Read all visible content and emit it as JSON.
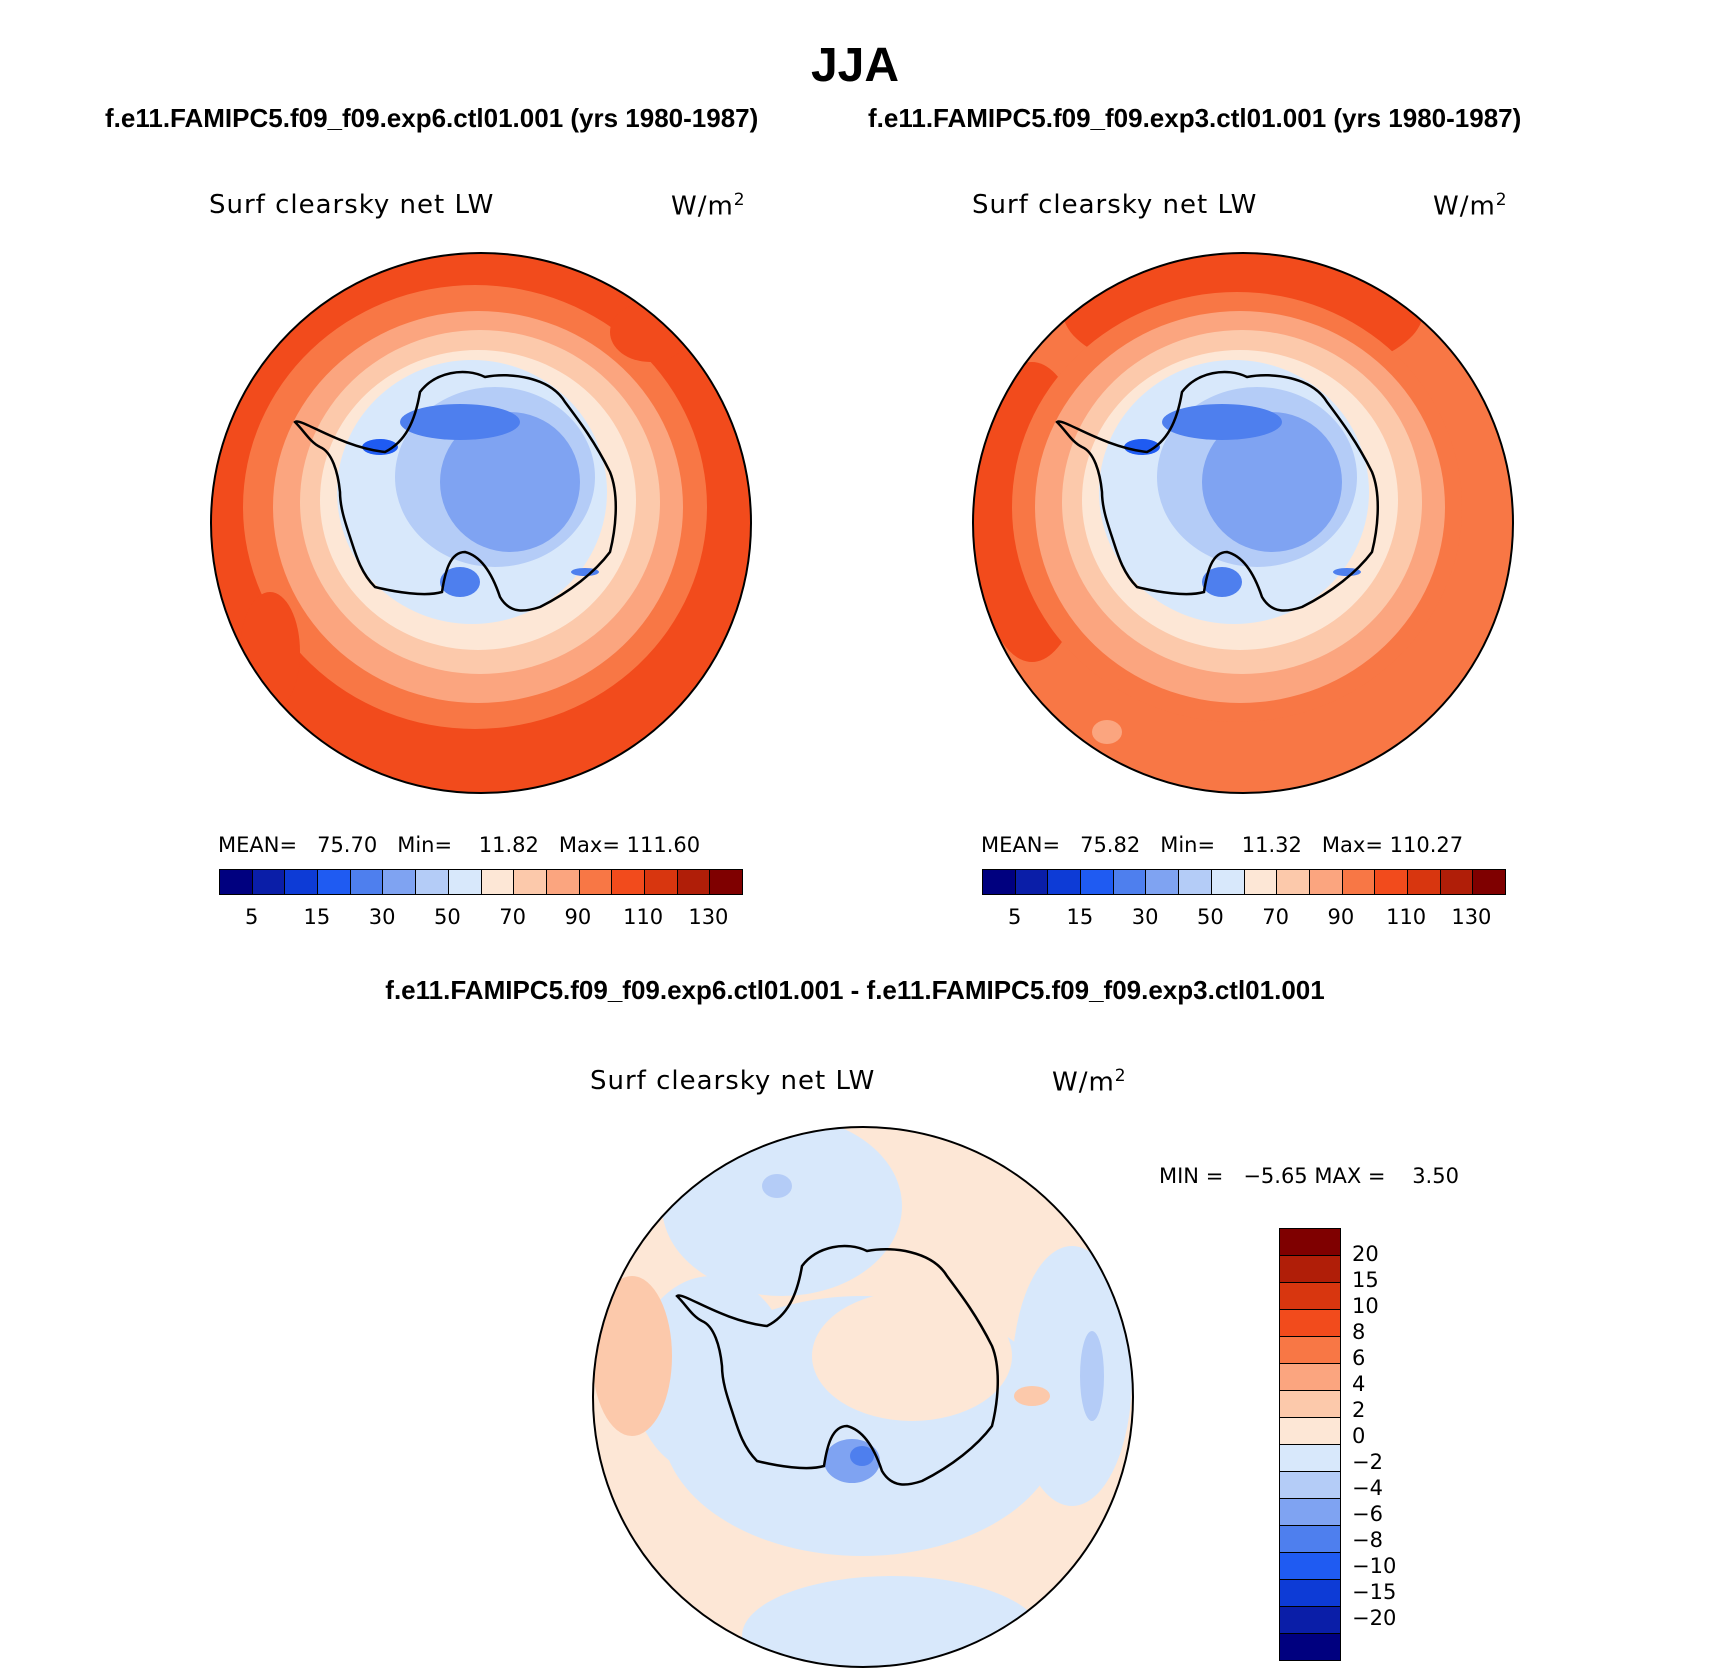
{
  "title": "JJA",
  "panels": [
    {
      "case_title": "f.e11.FAMIPC5.f09_f09.exp6.ctl01.001 (yrs 1980-1987)",
      "variable": "Surf clearsky net LW",
      "units": "W/m",
      "units_sup": "2",
      "stats": "MEAN=   75.70   Min=    11.82   Max= 111.60",
      "colorbar_labels": [
        "5",
        "15",
        "30",
        "50",
        "70",
        "90",
        "110",
        "130"
      ]
    },
    {
      "case_title": "f.e11.FAMIPC5.f09_f09.exp3.ctl01.001 (yrs 1980-1987)",
      "variable": "Surf clearsky net LW",
      "units": "W/m",
      "units_sup": "2",
      "stats": "MEAN=   75.82   Min=    11.32   Max= 110.27",
      "colorbar_labels": [
        "5",
        "15",
        "30",
        "50",
        "70",
        "90",
        "110",
        "130"
      ]
    }
  ],
  "difference": {
    "title": "f.e11.FAMIPC5.f09_f09.exp6.ctl01.001 - f.e11.FAMIPC5.f09_f09.exp3.ctl01.001",
    "variable": "Surf clearsky net LW",
    "units": "W/m",
    "units_sup": "2",
    "stats": "MIN =   −5.65 MAX =    3.50",
    "colorbar_labels": [
      "20",
      "15",
      "10",
      "8",
      "6",
      "4",
      "2",
      "0",
      "−2",
      "−4",
      "−6",
      "−8",
      "−10",
      "−15",
      "−20"
    ]
  },
  "colors": {
    "main_scale": [
      "#00007f",
      "#0a1ea8",
      "#0d3bd6",
      "#1f5bf2",
      "#4e7fee",
      "#7fa3f2",
      "#b4ccf7",
      "#d8e8fb",
      "#fde7d6",
      "#fcc9ab",
      "#fba57f",
      "#f87745",
      "#f24b1c",
      "#d8360f",
      "#b01e08",
      "#7f0000"
    ],
    "diff_scale": [
      "#7f0000",
      "#b01e08",
      "#d8360f",
      "#f24b1c",
      "#f87745",
      "#fba57f",
      "#fcc9ab",
      "#fde7d6",
      "#d8e8fb",
      "#b4ccf7",
      "#7fa3f2",
      "#4e7fee",
      "#1f5bf2",
      "#0d3bd6",
      "#0a1ea8",
      "#00007f"
    ]
  }
}
